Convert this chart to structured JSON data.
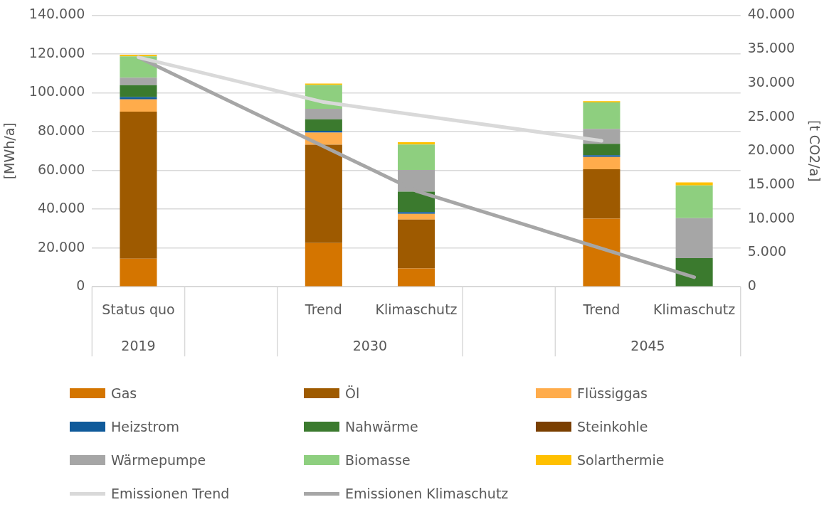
{
  "chart_data": {
    "type": "bar",
    "stacked": true,
    "ylabel": "[MWh/a]",
    "y2label": "[t CO2/a]",
    "categories": [
      "Status quo",
      null,
      "Trend",
      "Klimaschutz",
      null,
      "Trend",
      "Klimaschutz"
    ],
    "annotations": [
      "2019",
      "2030",
      "2045"
    ],
    "ylim": [
      0,
      140000
    ],
    "yticks": [
      {
        "value": 0,
        "label": "0"
      },
      {
        "value": 20000,
        "label": "20.000"
      },
      {
        "value": 40000,
        "label": "40.000"
      },
      {
        "value": 60000,
        "label": "60.000"
      },
      {
        "value": 80000,
        "label": "80.000"
      },
      {
        "value": 100000,
        "label": "100.000"
      },
      {
        "value": 120000,
        "label": "120.000"
      },
      {
        "value": 140000,
        "label": "140.000"
      }
    ],
    "y2lim": [
      0,
      40000
    ],
    "y2ticks": [
      {
        "value": 0,
        "label": "0"
      },
      {
        "value": 5000,
        "label": "5.000"
      },
      {
        "value": 10000,
        "label": "10.000"
      },
      {
        "value": 15000,
        "label": "15.000"
      },
      {
        "value": 20000,
        "label": "20.000"
      },
      {
        "value": 25000,
        "label": "25.000"
      },
      {
        "value": 30000,
        "label": "30.000"
      },
      {
        "value": 35000,
        "label": "35.000"
      },
      {
        "value": 40000,
        "label": "40.000"
      }
    ],
    "grid": "y",
    "legend": "bottom",
    "series": [
      {
        "name": "Gas",
        "color": "#d47500",
        "values": [
          14500,
          null,
          22500,
          9400,
          null,
          35100,
          0
        ]
      },
      {
        "name": "Öl",
        "color": "#9e5a00",
        "values": [
          75800,
          null,
          50700,
          25200,
          null,
          25500,
          0
        ]
      },
      {
        "name": "Flüssiggas",
        "color": "#ffac4b",
        "values": [
          6300,
          null,
          6300,
          3000,
          null,
          6300,
          0
        ]
      },
      {
        "name": "Heizstrom",
        "color": "#0f5a9a",
        "values": [
          1200,
          null,
          900,
          900,
          null,
          900,
          0
        ]
      },
      {
        "name": "Nahwärme",
        "color": "#3b7a2e",
        "values": [
          6100,
          null,
          5900,
          10500,
          null,
          5900,
          14700
        ]
      },
      {
        "name": "Steinkohle",
        "color": "#7a3f00",
        "values": [
          0,
          null,
          0,
          0,
          null,
          0,
          0
        ]
      },
      {
        "name": "Wärmepumpe",
        "color": "#a6a6a6",
        "values": [
          3900,
          null,
          5400,
          11200,
          null,
          7700,
          20700
        ]
      },
      {
        "name": "Biomasse",
        "color": "#8ecf7f",
        "values": [
          11000,
          null,
          12300,
          13100,
          null,
          13600,
          16800
        ]
      },
      {
        "name": "Solarthermie",
        "color": "#ffc000",
        "values": [
          800,
          null,
          800,
          1200,
          null,
          700,
          1600
        ]
      },
      {
        "name": "Emissionen Trend",
        "type": "line",
        "axis": "y2",
        "color": "#d9d9d9",
        "values": [
          33800,
          null,
          27200,
          null,
          null,
          21500,
          null
        ]
      },
      {
        "name": "Emissionen Klimaschutz",
        "type": "line",
        "axis": "y2",
        "color": "#a6a6a6",
        "values": [
          33800,
          null,
          null,
          14100,
          null,
          null,
          1400
        ]
      }
    ]
  }
}
